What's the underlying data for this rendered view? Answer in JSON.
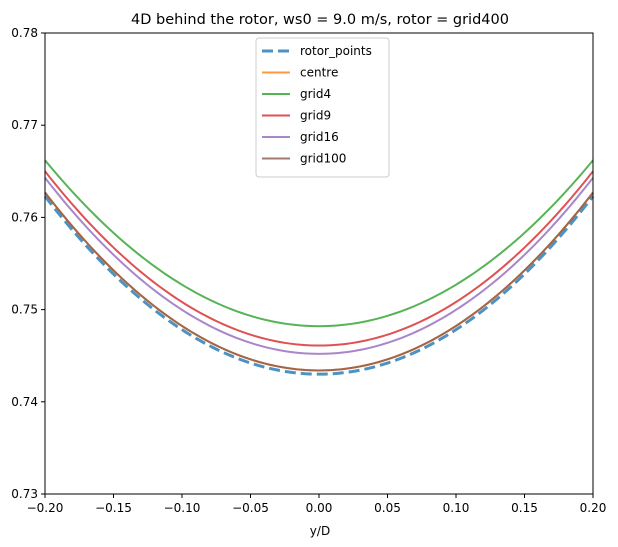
{
  "chart_data": {
    "type": "line",
    "title": "4D behind the rotor, ws0 = 9.0 m/s, rotor = grid400",
    "xlabel": "y/D",
    "ylabel": "",
    "xlim": [
      -0.2,
      0.2
    ],
    "ylim": [
      0.73,
      0.78
    ],
    "x_ticks": [
      -0.2,
      -0.15,
      -0.1,
      -0.05,
      0.0,
      0.05,
      0.1,
      0.15,
      0.2
    ],
    "x_tick_labels": [
      "−0.20",
      "−0.15",
      "−0.10",
      "−0.05",
      "0.00",
      "0.05",
      "0.10",
      "0.15",
      "0.20"
    ],
    "y_ticks": [
      0.73,
      0.74,
      0.75,
      0.76,
      0.77,
      0.78
    ],
    "y_tick_labels": [
      "0.73",
      "0.74",
      "0.75",
      "0.76",
      "0.77",
      "0.78"
    ],
    "legend_position": "upper-center",
    "series": [
      {
        "name": "rotor_points",
        "color": "#1f77b4",
        "style": "dashed",
        "min_value": 0.743,
        "edge_value": 0.7623
      },
      {
        "name": "centre",
        "color": "#ff7f0e",
        "style": "solid",
        "min_value": 0.7434,
        "edge_value": 0.7627
      },
      {
        "name": "grid4",
        "color": "#2ca02c",
        "style": "solid",
        "min_value": 0.7482,
        "edge_value": 0.7662
      },
      {
        "name": "grid9",
        "color": "#d62728",
        "style": "solid",
        "min_value": 0.7461,
        "edge_value": 0.765
      },
      {
        "name": "grid16",
        "color": "#9467bd",
        "style": "solid",
        "min_value": 0.7452,
        "edge_value": 0.7643
      },
      {
        "name": "grid100",
        "color": "#8c564b",
        "style": "solid",
        "min_value": 0.7434,
        "edge_value": 0.7627
      }
    ]
  }
}
